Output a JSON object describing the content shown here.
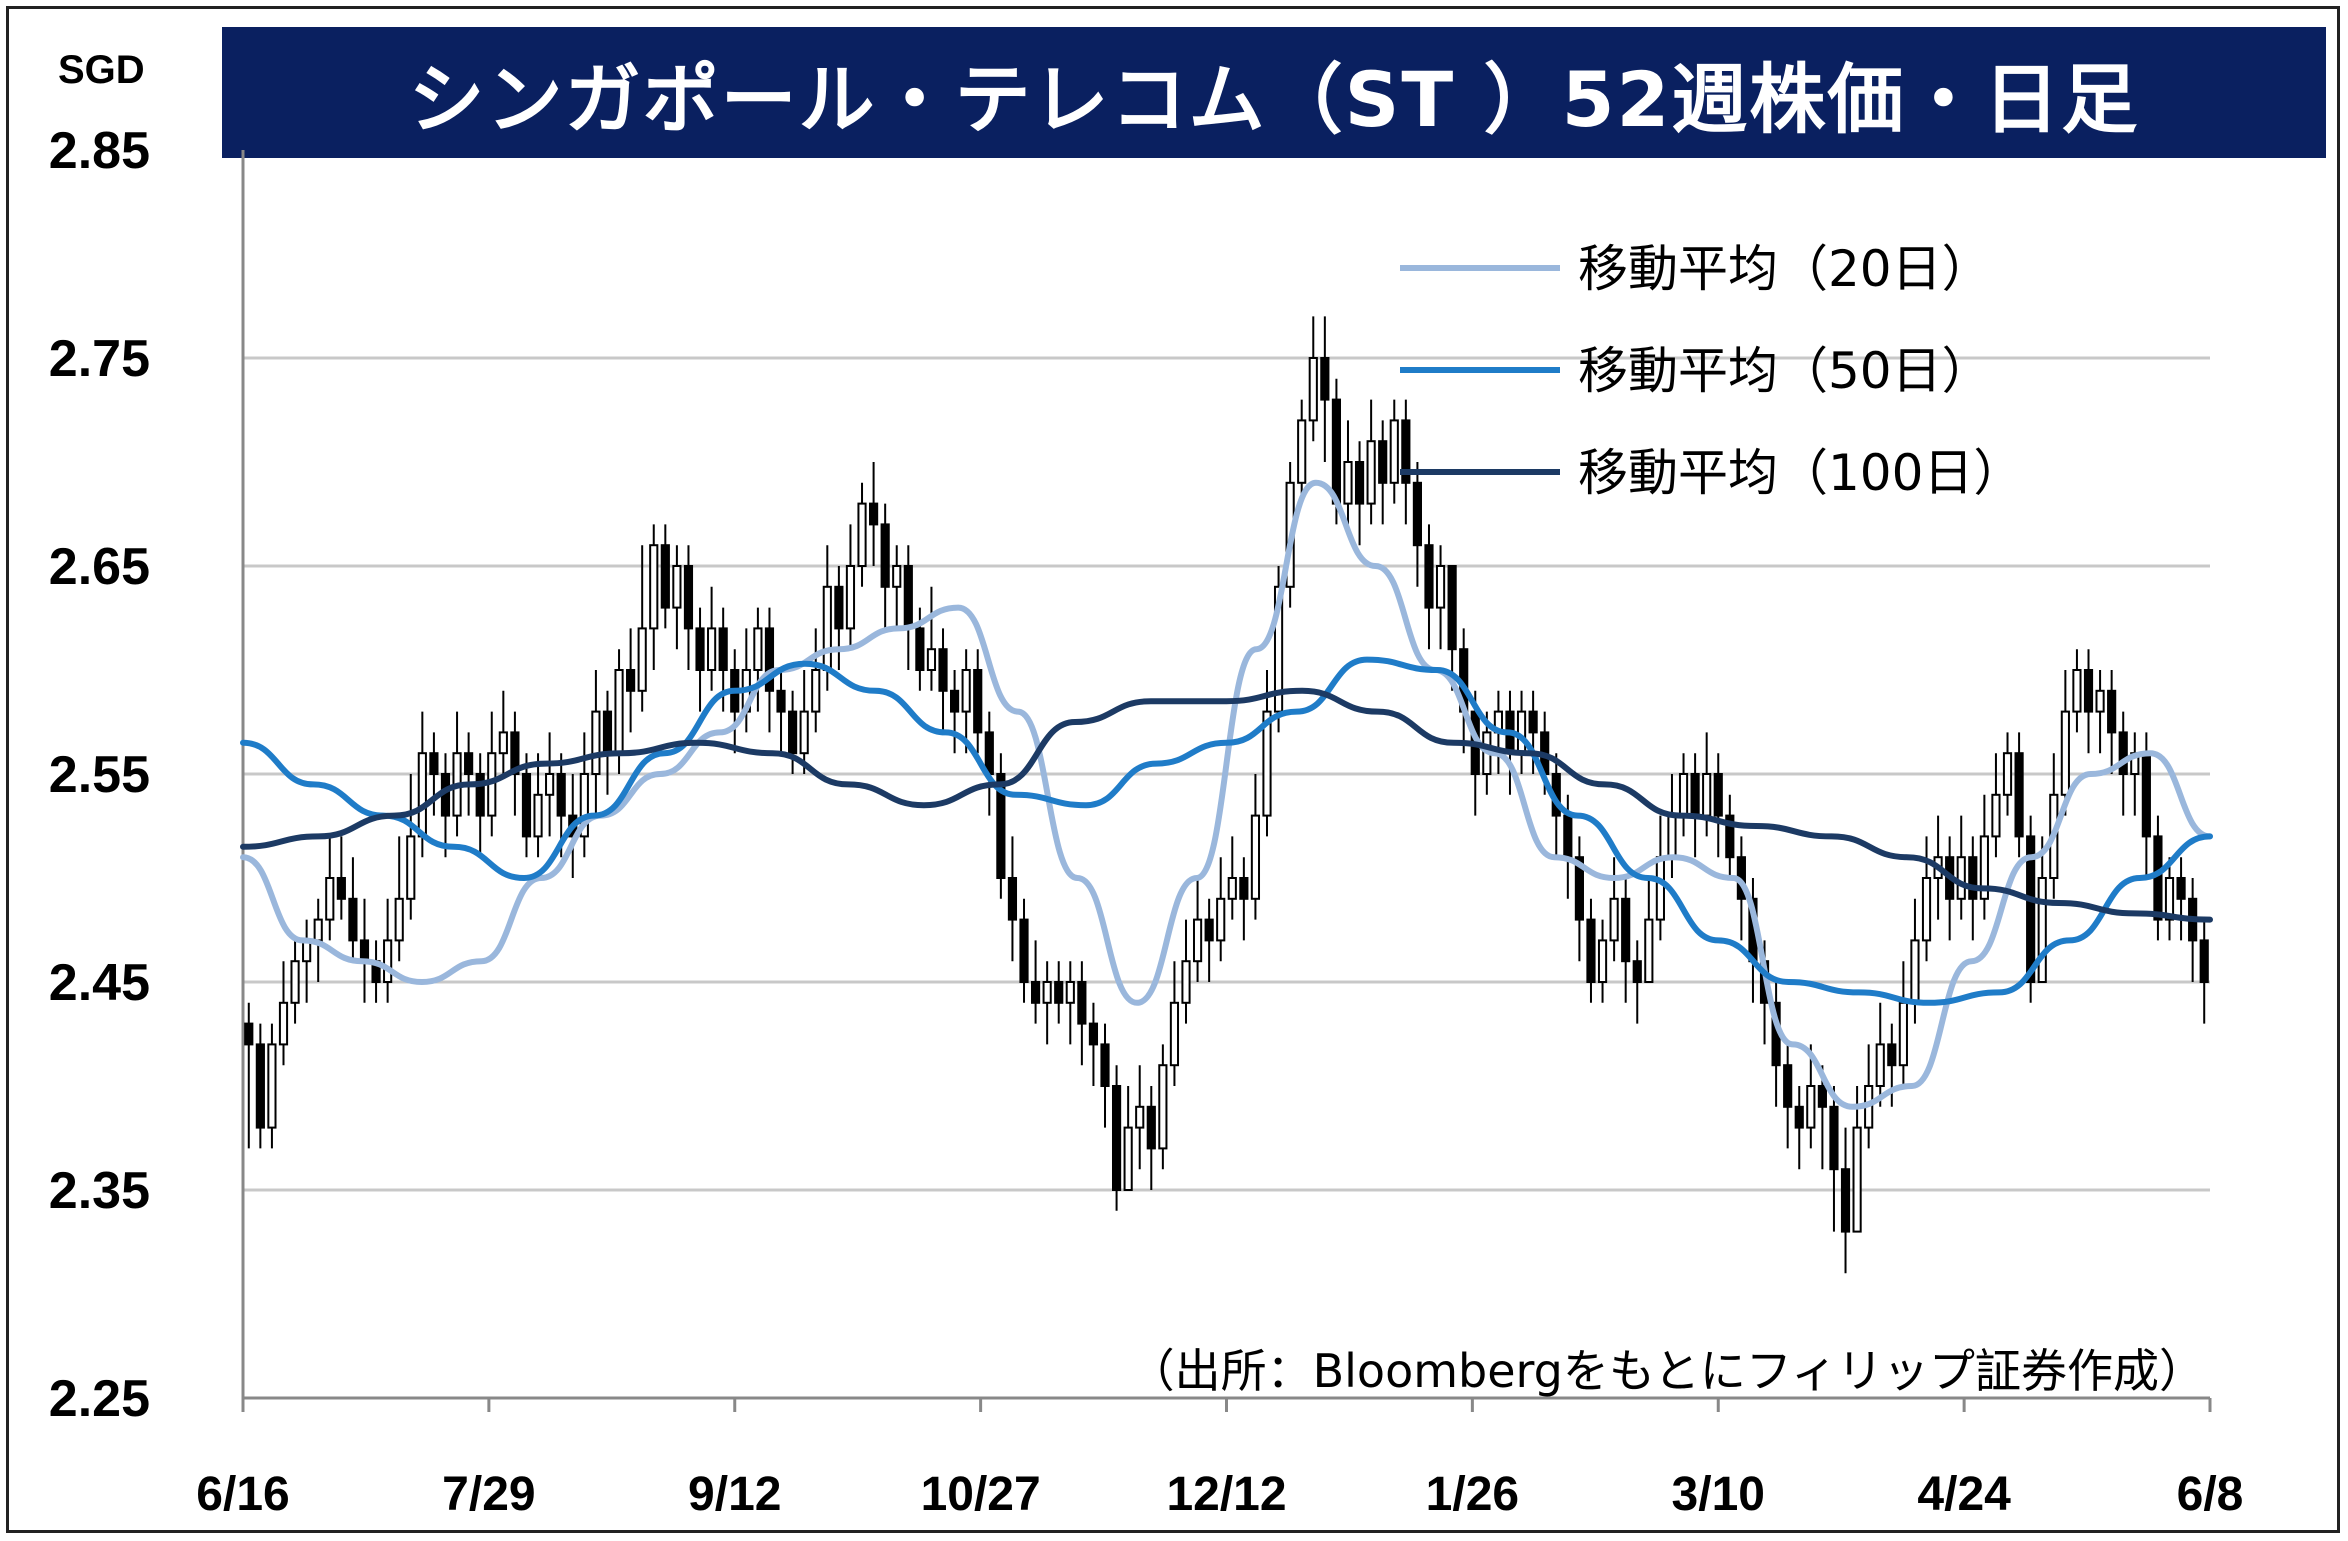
{
  "header": {
    "title": "シンガポール・テレコム（ST ）52週株価・日足",
    "unit": "SGD"
  },
  "source_note": "（出所：Bloombergをもとにフィリップ証券作成）",
  "colors": {
    "title_bg": "#0a2060",
    "ma20": "#9ab7dc",
    "ma50": "#1f7cc8",
    "ma100": "#1c3a64",
    "candle": "#000000",
    "grid": "#c8c8c8"
  },
  "chart_data": {
    "type": "line",
    "title": "シンガポール・テレコム（ST ）52週株価・日足",
    "ylabel": "SGD",
    "ylim": [
      2.25,
      2.85
    ],
    "yticks": [
      "2.85",
      "2.75",
      "2.65",
      "2.55",
      "2.45",
      "2.35",
      "2.25"
    ],
    "x_tick_labels": [
      "6/16",
      "7/29",
      "9/12",
      "10/27",
      "12/12",
      "1/26",
      "3/10",
      "4/24",
      "6/8"
    ],
    "grid": "horizontal",
    "legend_position": "top-right",
    "legend": [
      "移動平均（20日）",
      "移動平均（50日）",
      "移動平均（100日）"
    ],
    "series": [
      {
        "name": "移動平均（20日）",
        "values": [
          2.51,
          2.47,
          2.46,
          2.45,
          2.46,
          2.5,
          2.53,
          2.55,
          2.57,
          2.6,
          2.61,
          2.62,
          2.63,
          2.58,
          2.5,
          2.44,
          2.5,
          2.61,
          2.69,
          2.65,
          2.6,
          2.56,
          2.51,
          2.5,
          2.51,
          2.5,
          2.42,
          2.39,
          2.4,
          2.46,
          2.51,
          2.55,
          2.56,
          2.52
        ]
      },
      {
        "name": "移動平均（50日）",
        "values": [
          2.565,
          2.545,
          2.53,
          2.515,
          2.5,
          2.53,
          2.56,
          2.59,
          2.603,
          2.59,
          2.57,
          2.54,
          2.535,
          2.555,
          2.565,
          2.58,
          2.605,
          2.6,
          2.57,
          2.53,
          2.5,
          2.47,
          2.45,
          2.445,
          2.44,
          2.445,
          2.47,
          2.5,
          2.52
        ]
      },
      {
        "name": "移動平均（100日）",
        "values": [
          2.515,
          2.52,
          2.53,
          2.545,
          2.555,
          2.56,
          2.565,
          2.56,
          2.545,
          2.535,
          2.545,
          2.575,
          2.585,
          2.585,
          2.59,
          2.58,
          2.565,
          2.56,
          2.545,
          2.53,
          2.525,
          2.52,
          2.51,
          2.495,
          2.488,
          2.483,
          2.48
        ]
      }
    ],
    "candles": [
      [
        2.43,
        2.42,
        2.44,
        2.37
      ],
      [
        2.42,
        2.38,
        2.43,
        2.37
      ],
      [
        2.38,
        2.42,
        2.43,
        2.37
      ],
      [
        2.42,
        2.44,
        2.46,
        2.41
      ],
      [
        2.44,
        2.46,
        2.47,
        2.43
      ],
      [
        2.46,
        2.47,
        2.48,
        2.44
      ],
      [
        2.47,
        2.48,
        2.49,
        2.45
      ],
      [
        2.48,
        2.5,
        2.52,
        2.47
      ],
      [
        2.5,
        2.49,
        2.52,
        2.48
      ],
      [
        2.49,
        2.47,
        2.51,
        2.46
      ],
      [
        2.47,
        2.46,
        2.49,
        2.44
      ],
      [
        2.46,
        2.45,
        2.47,
        2.44
      ],
      [
        2.45,
        2.47,
        2.49,
        2.44
      ],
      [
        2.47,
        2.49,
        2.52,
        2.46
      ],
      [
        2.49,
        2.52,
        2.55,
        2.48
      ],
      [
        2.52,
        2.56,
        2.58,
        2.51
      ],
      [
        2.56,
        2.55,
        2.57,
        2.53
      ],
      [
        2.55,
        2.53,
        2.56,
        2.51
      ],
      [
        2.53,
        2.56,
        2.58,
        2.52
      ],
      [
        2.56,
        2.55,
        2.57,
        2.53
      ],
      [
        2.55,
        2.53,
        2.56,
        2.51
      ],
      [
        2.53,
        2.56,
        2.58,
        2.52
      ],
      [
        2.56,
        2.57,
        2.59,
        2.55
      ],
      [
        2.57,
        2.55,
        2.58,
        2.53
      ],
      [
        2.55,
        2.52,
        2.56,
        2.51
      ],
      [
        2.52,
        2.54,
        2.56,
        2.51
      ],
      [
        2.54,
        2.55,
        2.57,
        2.52
      ],
      [
        2.55,
        2.53,
        2.56,
        2.51
      ],
      [
        2.53,
        2.52,
        2.55,
        2.5
      ],
      [
        2.52,
        2.55,
        2.57,
        2.51
      ],
      [
        2.55,
        2.58,
        2.6,
        2.53
      ],
      [
        2.58,
        2.56,
        2.59,
        2.54
      ],
      [
        2.56,
        2.6,
        2.61,
        2.55
      ],
      [
        2.6,
        2.59,
        2.62,
        2.57
      ],
      [
        2.59,
        2.62,
        2.66,
        2.58
      ],
      [
        2.62,
        2.66,
        2.67,
        2.6
      ],
      [
        2.66,
        2.63,
        2.67,
        2.62
      ],
      [
        2.63,
        2.65,
        2.66,
        2.61
      ],
      [
        2.65,
        2.62,
        2.66,
        2.6
      ],
      [
        2.62,
        2.6,
        2.63,
        2.58
      ],
      [
        2.6,
        2.62,
        2.64,
        2.59
      ],
      [
        2.62,
        2.6,
        2.63,
        2.58
      ],
      [
        2.6,
        2.58,
        2.61,
        2.56
      ],
      [
        2.58,
        2.6,
        2.62,
        2.57
      ],
      [
        2.6,
        2.62,
        2.63,
        2.58
      ],
      [
        2.62,
        2.59,
        2.63,
        2.57
      ],
      [
        2.59,
        2.58,
        2.6,
        2.56
      ],
      [
        2.58,
        2.56,
        2.59,
        2.55
      ],
      [
        2.56,
        2.58,
        2.6,
        2.55
      ],
      [
        2.58,
        2.6,
        2.62,
        2.57
      ],
      [
        2.6,
        2.64,
        2.66,
        2.59
      ],
      [
        2.64,
        2.62,
        2.65,
        2.6
      ],
      [
        2.62,
        2.65,
        2.67,
        2.61
      ],
      [
        2.65,
        2.68,
        2.69,
        2.64
      ],
      [
        2.68,
        2.67,
        2.7,
        2.65
      ],
      [
        2.67,
        2.64,
        2.68,
        2.62
      ],
      [
        2.64,
        2.65,
        2.66,
        2.62
      ],
      [
        2.65,
        2.62,
        2.66,
        2.6
      ],
      [
        2.62,
        2.6,
        2.63,
        2.59
      ],
      [
        2.6,
        2.61,
        2.64,
        2.59
      ],
      [
        2.61,
        2.59,
        2.62,
        2.57
      ],
      [
        2.59,
        2.58,
        2.6,
        2.56
      ],
      [
        2.58,
        2.6,
        2.61,
        2.56
      ],
      [
        2.6,
        2.57,
        2.61,
        2.56
      ],
      [
        2.57,
        2.55,
        2.58,
        2.53
      ],
      [
        2.55,
        2.5,
        2.56,
        2.49
      ],
      [
        2.5,
        2.48,
        2.52,
        2.46
      ],
      [
        2.48,
        2.45,
        2.49,
        2.44
      ],
      [
        2.45,
        2.44,
        2.47,
        2.43
      ],
      [
        2.44,
        2.45,
        2.46,
        2.42
      ],
      [
        2.45,
        2.44,
        2.46,
        2.43
      ],
      [
        2.44,
        2.45,
        2.46,
        2.42
      ],
      [
        2.45,
        2.43,
        2.46,
        2.41
      ],
      [
        2.43,
        2.42,
        2.44,
        2.4
      ],
      [
        2.42,
        2.4,
        2.43,
        2.38
      ],
      [
        2.4,
        2.35,
        2.41,
        2.34
      ],
      [
        2.35,
        2.38,
        2.4,
        2.35
      ],
      [
        2.38,
        2.39,
        2.41,
        2.36
      ],
      [
        2.39,
        2.37,
        2.4,
        2.35
      ],
      [
        2.37,
        2.41,
        2.42,
        2.36
      ],
      [
        2.41,
        2.44,
        2.46,
        2.4
      ],
      [
        2.44,
        2.46,
        2.48,
        2.43
      ],
      [
        2.46,
        2.48,
        2.5,
        2.45
      ],
      [
        2.48,
        2.47,
        2.49,
        2.45
      ],
      [
        2.47,
        2.49,
        2.51,
        2.46
      ],
      [
        2.49,
        2.5,
        2.52,
        2.48
      ],
      [
        2.5,
        2.49,
        2.51,
        2.47
      ],
      [
        2.49,
        2.53,
        2.55,
        2.48
      ],
      [
        2.53,
        2.58,
        2.6,
        2.52
      ],
      [
        2.58,
        2.64,
        2.65,
        2.57
      ],
      [
        2.64,
        2.69,
        2.7,
        2.63
      ],
      [
        2.69,
        2.72,
        2.73,
        2.68
      ],
      [
        2.72,
        2.75,
        2.77,
        2.71
      ],
      [
        2.75,
        2.73,
        2.77,
        2.7
      ],
      [
        2.73,
        2.68,
        2.74,
        2.67
      ],
      [
        2.68,
        2.7,
        2.72,
        2.67
      ],
      [
        2.7,
        2.68,
        2.71,
        2.66
      ],
      [
        2.68,
        2.71,
        2.73,
        2.67
      ],
      [
        2.71,
        2.69,
        2.72,
        2.67
      ],
      [
        2.69,
        2.72,
        2.73,
        2.68
      ],
      [
        2.72,
        2.69,
        2.73,
        2.67
      ],
      [
        2.69,
        2.66,
        2.7,
        2.64
      ],
      [
        2.66,
        2.63,
        2.67,
        2.61
      ],
      [
        2.63,
        2.65,
        2.66,
        2.61
      ],
      [
        2.65,
        2.61,
        2.65,
        2.59
      ],
      [
        2.61,
        2.58,
        2.62,
        2.56
      ],
      [
        2.58,
        2.55,
        2.59,
        2.53
      ],
      [
        2.55,
        2.57,
        2.58,
        2.54
      ],
      [
        2.57,
        2.58,
        2.59,
        2.55
      ],
      [
        2.58,
        2.56,
        2.59,
        2.54
      ],
      [
        2.56,
        2.58,
        2.59,
        2.55
      ],
      [
        2.58,
        2.57,
        2.59,
        2.55
      ],
      [
        2.57,
        2.55,
        2.58,
        2.54
      ],
      [
        2.55,
        2.53,
        2.56,
        2.51
      ],
      [
        2.53,
        2.51,
        2.54,
        2.49
      ],
      [
        2.51,
        2.48,
        2.52,
        2.46
      ],
      [
        2.48,
        2.45,
        2.49,
        2.44
      ],
      [
        2.45,
        2.47,
        2.48,
        2.44
      ],
      [
        2.47,
        2.49,
        2.51,
        2.46
      ],
      [
        2.49,
        2.46,
        2.5,
        2.44
      ],
      [
        2.46,
        2.45,
        2.47,
        2.43
      ],
      [
        2.45,
        2.48,
        2.5,
        2.45
      ],
      [
        2.48,
        2.51,
        2.53,
        2.47
      ],
      [
        2.51,
        2.53,
        2.55,
        2.5
      ],
      [
        2.53,
        2.55,
        2.56,
        2.52
      ],
      [
        2.55,
        2.53,
        2.56,
        2.51
      ],
      [
        2.53,
        2.55,
        2.57,
        2.52
      ],
      [
        2.55,
        2.53,
        2.56,
        2.51
      ],
      [
        2.53,
        2.51,
        2.54,
        2.5
      ],
      [
        2.51,
        2.49,
        2.52,
        2.47
      ],
      [
        2.49,
        2.46,
        2.5,
        2.44
      ],
      [
        2.46,
        2.44,
        2.47,
        2.42
      ],
      [
        2.44,
        2.41,
        2.45,
        2.39
      ],
      [
        2.41,
        2.39,
        2.42,
        2.37
      ],
      [
        2.39,
        2.38,
        2.4,
        2.36
      ],
      [
        2.38,
        2.4,
        2.42,
        2.37
      ],
      [
        2.4,
        2.39,
        2.41,
        2.36
      ],
      [
        2.39,
        2.36,
        2.4,
        2.33
      ],
      [
        2.36,
        2.33,
        2.38,
        2.31
      ],
      [
        2.33,
        2.38,
        2.4,
        2.33
      ],
      [
        2.38,
        2.4,
        2.42,
        2.37
      ],
      [
        2.4,
        2.42,
        2.44,
        2.39
      ],
      [
        2.42,
        2.41,
        2.43,
        2.39
      ],
      [
        2.41,
        2.44,
        2.46,
        2.4
      ],
      [
        2.44,
        2.47,
        2.49,
        2.43
      ],
      [
        2.47,
        2.5,
        2.52,
        2.46
      ],
      [
        2.5,
        2.51,
        2.53,
        2.48
      ],
      [
        2.51,
        2.49,
        2.52,
        2.47
      ],
      [
        2.49,
        2.51,
        2.53,
        2.48
      ],
      [
        2.51,
        2.49,
        2.52,
        2.47
      ],
      [
        2.49,
        2.52,
        2.54,
        2.48
      ],
      [
        2.52,
        2.54,
        2.56,
        2.51
      ],
      [
        2.54,
        2.56,
        2.57,
        2.53
      ],
      [
        2.56,
        2.52,
        2.57,
        2.51
      ],
      [
        2.52,
        2.45,
        2.53,
        2.44
      ],
      [
        2.45,
        2.5,
        2.52,
        2.45
      ],
      [
        2.5,
        2.54,
        2.56,
        2.49
      ],
      [
        2.54,
        2.58,
        2.6,
        2.53
      ],
      [
        2.58,
        2.6,
        2.61,
        2.57
      ],
      [
        2.6,
        2.58,
        2.61,
        2.56
      ],
      [
        2.58,
        2.59,
        2.6,
        2.56
      ],
      [
        2.59,
        2.57,
        2.6,
        2.55
      ],
      [
        2.57,
        2.55,
        2.58,
        2.53
      ],
      [
        2.55,
        2.56,
        2.57,
        2.53
      ],
      [
        2.56,
        2.52,
        2.57,
        2.5
      ],
      [
        2.52,
        2.48,
        2.53,
        2.47
      ],
      [
        2.48,
        2.5,
        2.51,
        2.47
      ],
      [
        2.5,
        2.49,
        2.51,
        2.47
      ],
      [
        2.49,
        2.47,
        2.5,
        2.45
      ],
      [
        2.47,
        2.45,
        2.48,
        2.43
      ]
    ]
  }
}
